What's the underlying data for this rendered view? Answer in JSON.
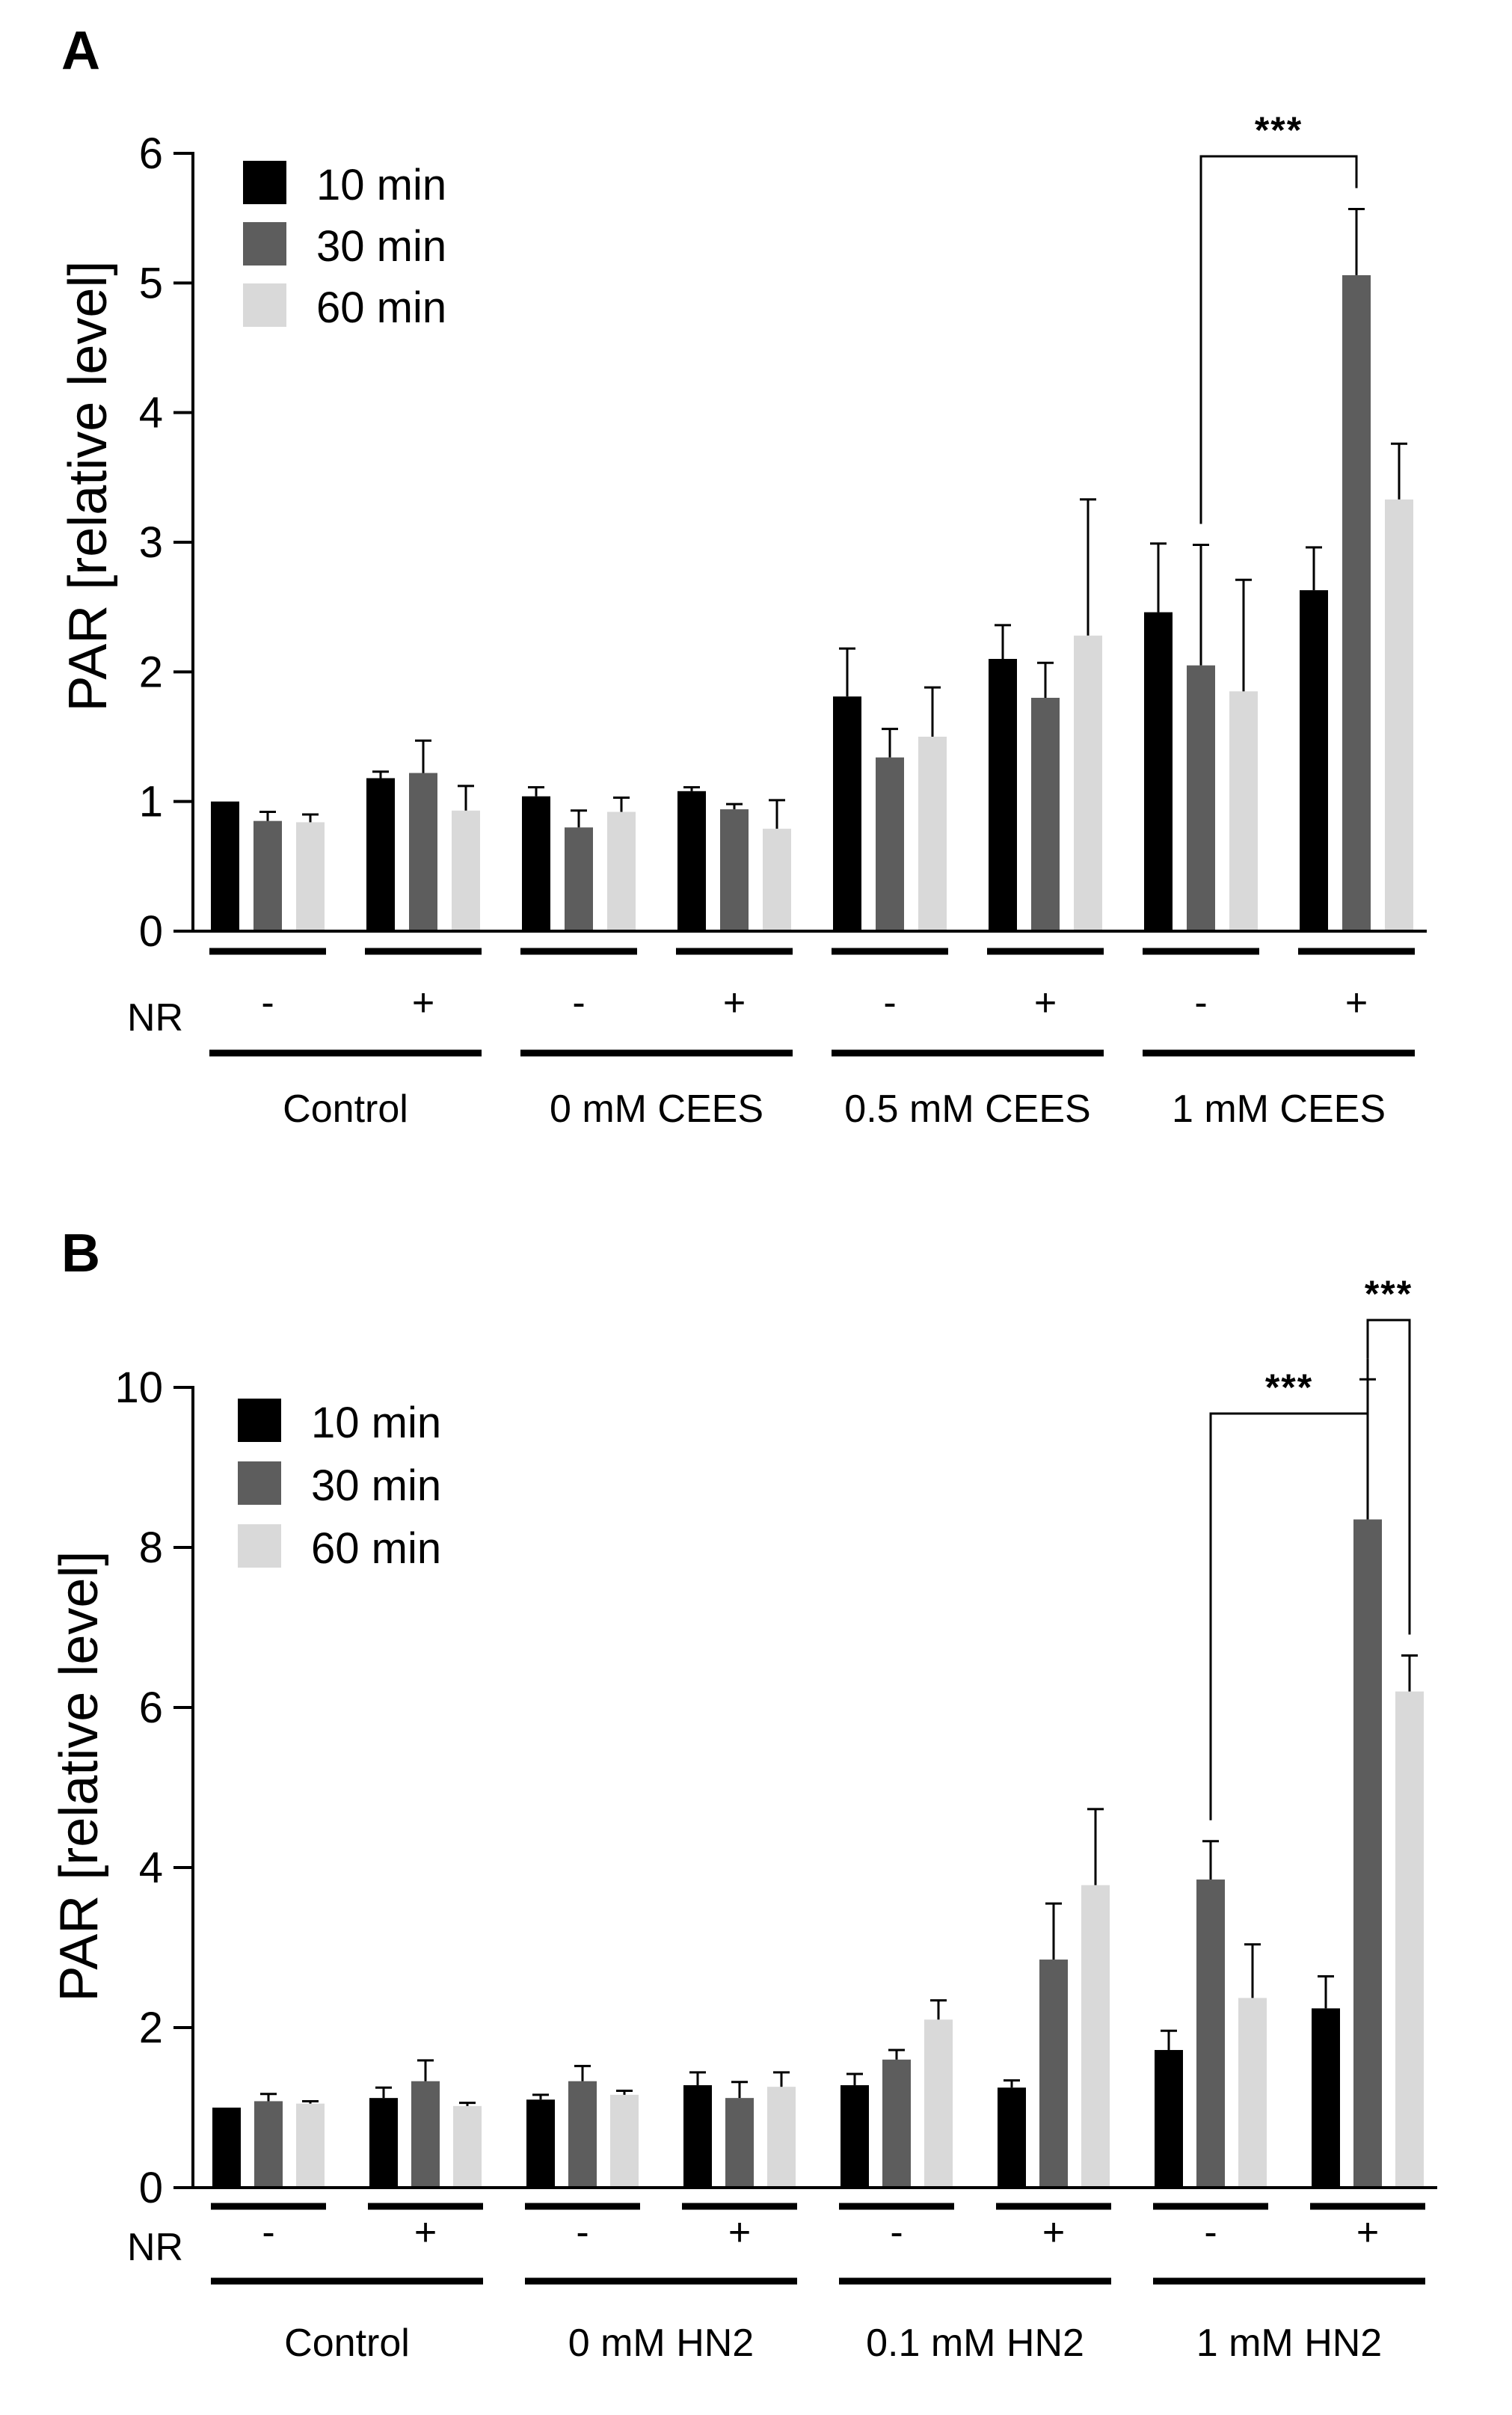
{
  "chart_data": [
    {
      "panel": "A",
      "type": "bar",
      "ylabel": "PAR [relative level]",
      "ylim": [
        0,
        6
      ],
      "yticks": [
        0,
        1,
        2,
        3,
        4,
        5,
        6
      ],
      "nr_label": "NR",
      "legend": {
        "placement": "top-left",
        "entries": [
          "10 min",
          "30 min",
          "60 min"
        ]
      },
      "colors": [
        "#000000",
        "#5d5d5d",
        "#d9d9d9"
      ],
      "series": [
        {
          "name": "10 min",
          "values": [
            1.0,
            1.18,
            1.04,
            1.08,
            1.81,
            2.1,
            2.46,
            2.63
          ],
          "errors": [
            0.0,
            0.05,
            0.07,
            0.03,
            0.37,
            0.26,
            0.53,
            0.33
          ]
        },
        {
          "name": "30 min",
          "values": [
            0.85,
            1.22,
            0.8,
            0.94,
            1.34,
            1.8,
            2.05,
            5.06
          ],
          "errors": [
            0.07,
            0.25,
            0.13,
            0.04,
            0.22,
            0.27,
            0.93,
            0.51
          ]
        },
        {
          "name": "60 min",
          "values": [
            0.84,
            0.93,
            0.92,
            0.79,
            1.5,
            2.28,
            1.85,
            3.33
          ],
          "errors": [
            0.06,
            0.19,
            0.11,
            0.22,
            0.38,
            1.05,
            0.86,
            0.43
          ]
        }
      ],
      "nr": [
        "-",
        "+",
        "-",
        "+",
        "-",
        "+",
        "-",
        "+"
      ],
      "groups": [
        "Control",
        "0 mM CEES",
        "0.5 mM CEES",
        "1 mM CEES"
      ],
      "annotations": [
        {
          "text": "***",
          "from_bar": [
            6,
            1
          ],
          "to_bar": [
            7,
            1
          ]
        }
      ]
    },
    {
      "panel": "B",
      "type": "bar",
      "ylabel": "PAR [relative level]",
      "ylim": [
        0,
        10
      ],
      "yticks": [
        0,
        2,
        4,
        6,
        8,
        10
      ],
      "nr_label": "NR",
      "legend": {
        "placement": "top-left",
        "entries": [
          "10 min",
          "30 min",
          "60 min"
        ]
      },
      "colors": [
        "#000000",
        "#5d5d5d",
        "#d9d9d9"
      ],
      "series": [
        {
          "name": "10 min",
          "values": [
            1.0,
            1.12,
            1.1,
            1.28,
            1.28,
            1.25,
            1.72,
            2.24
          ],
          "errors": [
            0.0,
            0.13,
            0.06,
            0.16,
            0.14,
            0.09,
            0.24,
            0.4
          ]
        },
        {
          "name": "30 min",
          "values": [
            1.08,
            1.33,
            1.33,
            1.12,
            1.6,
            2.85,
            3.85,
            8.35
          ],
          "errors": [
            0.09,
            0.26,
            0.19,
            0.2,
            0.12,
            0.7,
            0.48,
            1.75
          ]
        },
        {
          "name": "60 min",
          "values": [
            1.05,
            1.02,
            1.16,
            1.26,
            2.1,
            3.78,
            2.37,
            6.2
          ],
          "errors": [
            0.03,
            0.04,
            0.05,
            0.18,
            0.24,
            0.95,
            0.67,
            0.45
          ]
        }
      ],
      "nr": [
        "-",
        "+",
        "-",
        "+",
        "-",
        "+",
        "-",
        "+"
      ],
      "groups": [
        "Control",
        "0 mM HN2",
        "0.1 mM HN2",
        "1 mM HN2"
      ],
      "annotations": [
        {
          "text": "***",
          "from_bar": [
            6,
            1
          ],
          "to_bar": [
            7,
            1
          ]
        },
        {
          "text": "***",
          "from_bar": [
            7,
            1
          ],
          "to_bar": [
            7,
            2
          ]
        }
      ]
    }
  ]
}
